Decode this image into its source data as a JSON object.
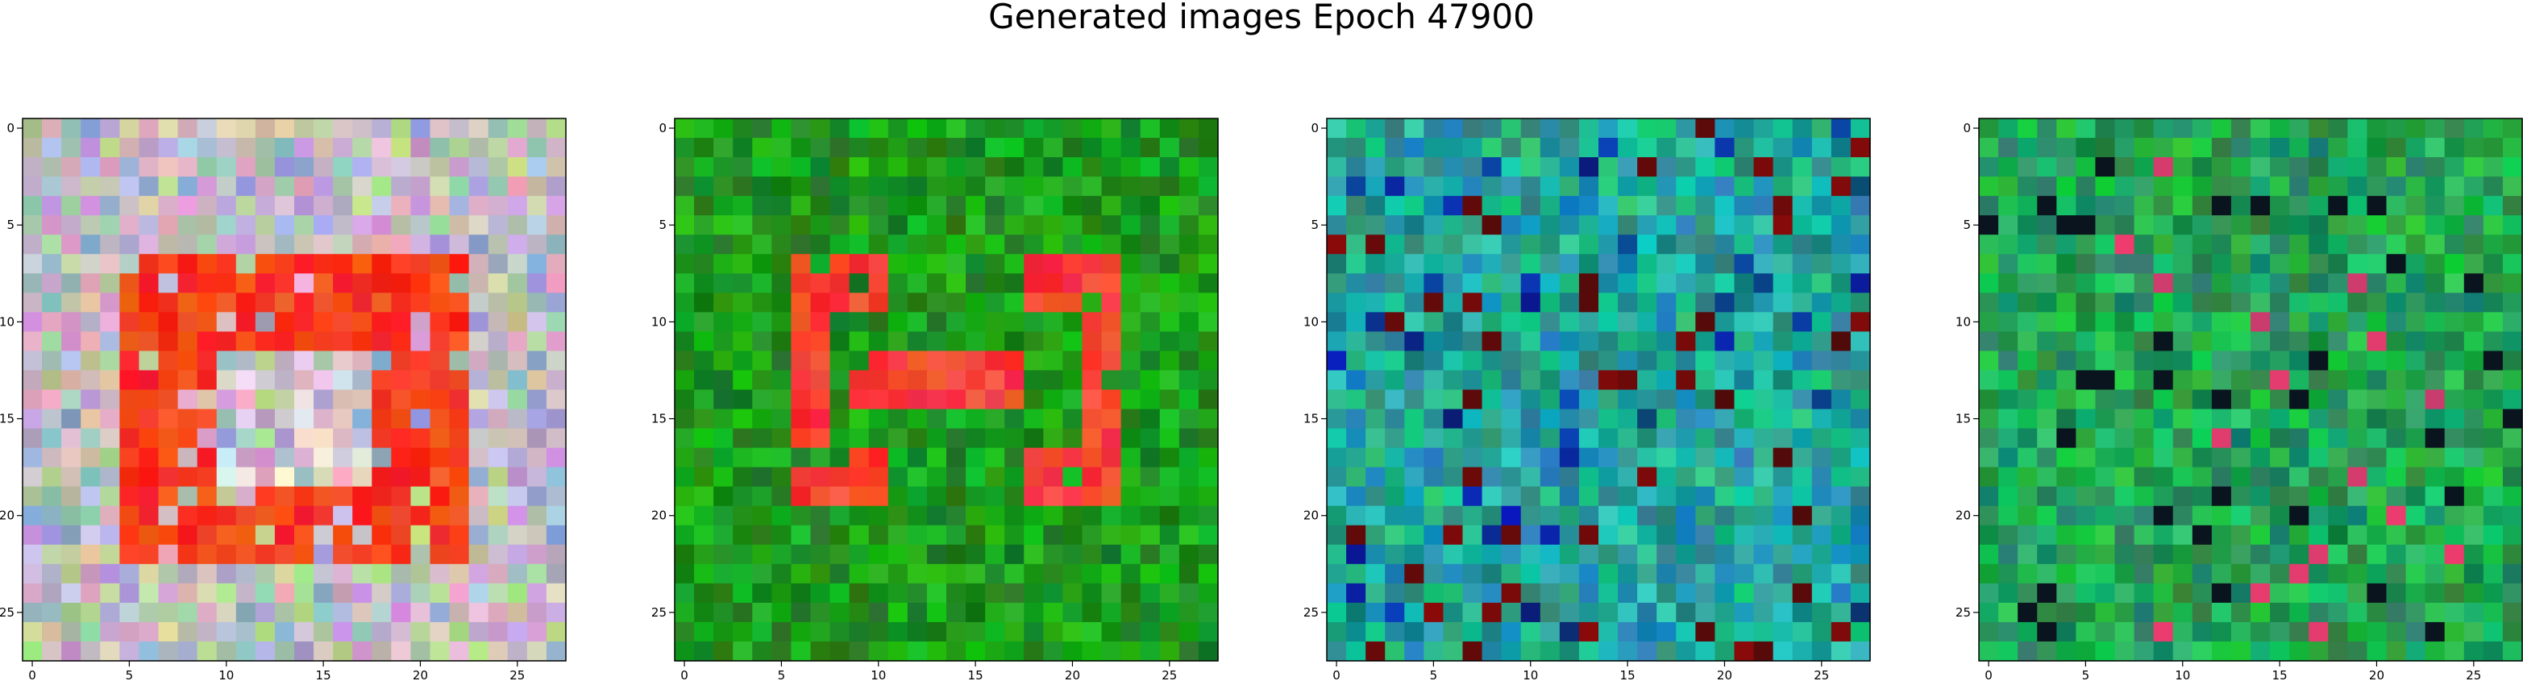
{
  "title": "Generated images Epoch 47900",
  "panels": [
    {
      "name": "sample-1",
      "palette": "pastel-red",
      "pattern": "square-ring",
      "xticks": [
        "0",
        "5",
        "10",
        "15",
        "20",
        "25"
      ],
      "yticks": [
        "0",
        "5",
        "10",
        "15",
        "20",
        "25"
      ]
    },
    {
      "name": "sample-2",
      "palette": "green-red",
      "pattern": "bracket-mirror",
      "xticks": [
        "0",
        "5",
        "10",
        "15",
        "20",
        "25"
      ],
      "yticks": [
        "0",
        "5",
        "10",
        "15",
        "20",
        "25"
      ]
    },
    {
      "name": "sample-3",
      "palette": "teal-noise",
      "pattern": "noise",
      "xticks": [
        "0",
        "5",
        "10",
        "15",
        "20",
        "25"
      ],
      "yticks": [
        "0",
        "5",
        "10",
        "15",
        "20",
        "25"
      ]
    },
    {
      "name": "sample-4",
      "palette": "green-noise",
      "pattern": "noise",
      "xticks": [
        "0",
        "5",
        "10",
        "15",
        "20",
        "25"
      ],
      "yticks": [
        "0",
        "5",
        "10",
        "15",
        "20",
        "25"
      ]
    }
  ],
  "grid_size": [
    28,
    28
  ]
}
